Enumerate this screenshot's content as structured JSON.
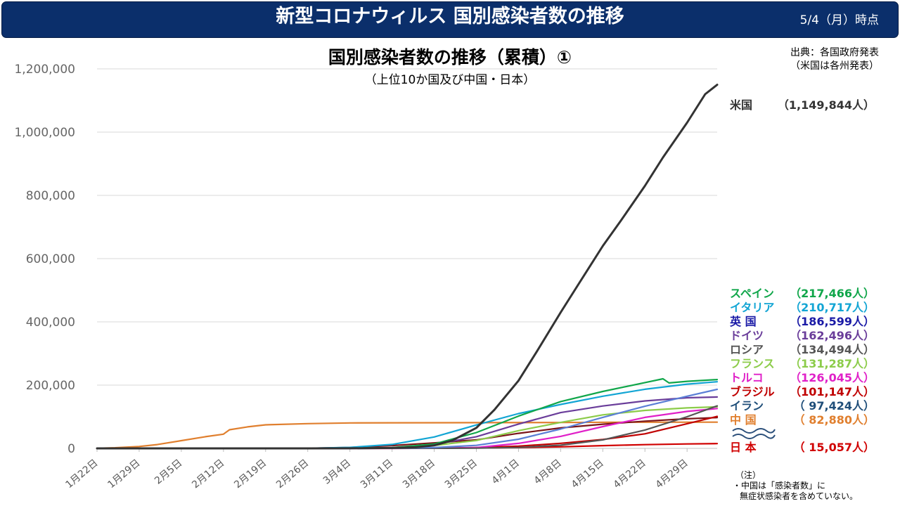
{
  "header": {
    "title": "新型コロナウィルス 国別感染者数の推移",
    "date": "5/4（月）時点"
  },
  "source": {
    "line1": "出典：各国政府発表",
    "line2": "（米国は各州発表）"
  },
  "note": {
    "head": "（注）",
    "line1": "・中国は「感染者数」に",
    "line2": "無症状感染者を含めていない。"
  },
  "chart_data": {
    "type": "line",
    "title": "国別感染者数の推移（累積）①",
    "subtitle": "（上位10か国及び中国・日本）",
    "ylim": [
      0,
      1200000
    ],
    "yticks": [
      "0",
      "200,000",
      "400,000",
      "600,000",
      "800,000",
      "1,000,000",
      "1,200,000"
    ],
    "yticks_values": [
      0,
      200000,
      400000,
      600000,
      800000,
      1000000,
      1200000
    ],
    "x_range": [
      "1月22日",
      "5月4日"
    ],
    "xticks": [
      "1月22日",
      "1月29日",
      "2月5日",
      "2月12日",
      "2月19日",
      "2月26日",
      "3月4日",
      "3月11日",
      "3月18日",
      "3月25日",
      "4月1日",
      "4月8日",
      "4月15日",
      "4月22日",
      "4月29日"
    ],
    "grid": true,
    "legend_placement": "right",
    "series": [
      {
        "name": "米国",
        "value_label": "（1,149,844人）",
        "color": "#333333",
        "points": [
          [
            "1月22日",
            1
          ],
          [
            "2月26日",
            60
          ],
          [
            "3月4日",
            150
          ],
          [
            "3月11日",
            1300
          ],
          [
            "3月15日",
            3500
          ],
          [
            "3月18日",
            9500
          ],
          [
            "3月21日",
            25000
          ],
          [
            "3月25日",
            65000
          ],
          [
            "3月28日",
            122000
          ],
          [
            "4月1日",
            214000
          ],
          [
            "4月4日",
            305000
          ],
          [
            "4月8日",
            430000
          ],
          [
            "4月11日",
            520000
          ],
          [
            "4月15日",
            640000
          ],
          [
            "4月18日",
            720000
          ],
          [
            "4月22日",
            830000
          ],
          [
            "4月25日",
            920000
          ],
          [
            "4月29日",
            1030000
          ],
          [
            "5月2日",
            1120000
          ],
          [
            "5月4日",
            1149844
          ]
        ]
      },
      {
        "name": "スペイン",
        "value_label": "（217,466人）",
        "color": "#10a64a",
        "points": [
          [
            "1月22日",
            0
          ],
          [
            "3月4日",
            200
          ],
          [
            "3月11日",
            2300
          ],
          [
            "3月18日",
            13700
          ],
          [
            "3月25日",
            50000
          ],
          [
            "4月1日",
            102000
          ],
          [
            "4月8日",
            148000
          ],
          [
            "4月15日",
            180000
          ],
          [
            "4月22日",
            208000
          ],
          [
            "4月25日",
            220000
          ],
          [
            "4月26日",
            207000
          ],
          [
            "4月29日",
            212000
          ],
          [
            "5月4日",
            217466
          ]
        ]
      },
      {
        "name": "イタリア",
        "value_label": "（210,717人）",
        "color": "#12a5d4",
        "points": [
          [
            "1月22日",
            0
          ],
          [
            "2月21日",
            20
          ],
          [
            "2月26日",
            450
          ],
          [
            "3月4日",
            3100
          ],
          [
            "3月11日",
            12500
          ],
          [
            "3月18日",
            36000
          ],
          [
            "3月25日",
            74000
          ],
          [
            "4月1日",
            110000
          ],
          [
            "4月8日",
            139000
          ],
          [
            "4月15日",
            165000
          ],
          [
            "4月22日",
            187000
          ],
          [
            "4月29日",
            203000
          ],
          [
            "5月4日",
            210717
          ]
        ]
      },
      {
        "name": "英国",
        "value_label": "（186,599人）",
        "color": "#5b7fd6",
        "points": [
          [
            "1月22日",
            0
          ],
          [
            "3月4日",
            90
          ],
          [
            "3月11日",
            460
          ],
          [
            "3月18日",
            2700
          ],
          [
            "3月25日",
            9500
          ],
          [
            "4月1日",
            29000
          ],
          [
            "4月8日",
            61000
          ],
          [
            "4月15日",
            98000
          ],
          [
            "4月22日",
            133000
          ],
          [
            "4月29日",
            165000
          ],
          [
            "5月4日",
            186599
          ]
        ]
      },
      {
        "name": "ドイツ",
        "value_label": "（162,496人）",
        "color": "#6a3d9a",
        "points": [
          [
            "1月22日",
            0
          ],
          [
            "2月26日",
            20
          ],
          [
            "3月4日",
            260
          ],
          [
            "3月11日",
            1900
          ],
          [
            "3月18日",
            12300
          ],
          [
            "3月25日",
            37000
          ],
          [
            "4月1日",
            77000
          ],
          [
            "4月8日",
            113000
          ],
          [
            "4月15日",
            134000
          ],
          [
            "4月22日",
            150000
          ],
          [
            "4月29日",
            160000
          ],
          [
            "5月4日",
            162496
          ]
        ]
      },
      {
        "name": "ロシア",
        "value_label": "（134,494人）",
        "color": "#555555",
        "points": [
          [
            "1月22日",
            0
          ],
          [
            "3月18日",
            150
          ],
          [
            "3月25日",
            650
          ],
          [
            "4月1日",
            2800
          ],
          [
            "4月8日",
            10000
          ],
          [
            "4月15日",
            27000
          ],
          [
            "4月22日",
            58000
          ],
          [
            "4月29日",
            100000
          ],
          [
            "5月4日",
            134494
          ]
        ]
      },
      {
        "name": "フランス",
        "value_label": "（131,287人）",
        "color": "#8ccc4a",
        "points": [
          [
            "1月22日",
            3
          ],
          [
            "2月26日",
            18
          ],
          [
            "3月4日",
            280
          ],
          [
            "3月11日",
            2300
          ],
          [
            "3月18日",
            9100
          ],
          [
            "3月25日",
            25000
          ],
          [
            "4月1日",
            56000
          ],
          [
            "4月8日",
            82000
          ],
          [
            "4月15日",
            106000
          ],
          [
            "4月22日",
            120000
          ],
          [
            "4月29日",
            128000
          ],
          [
            "5月4日",
            131287
          ]
        ]
      },
      {
        "name": "トルコ",
        "value_label": "（126,045人）",
        "color": "#e020c8",
        "points": [
          [
            "1月22日",
            0
          ],
          [
            "3月11日",
            1
          ],
          [
            "3月18日",
            190
          ],
          [
            "3月25日",
            2400
          ],
          [
            "4月1日",
            15700
          ],
          [
            "4月8日",
            38000
          ],
          [
            "4月15日",
            69000
          ],
          [
            "4月22日",
            98000
          ],
          [
            "4月29日",
            117000
          ],
          [
            "5月4日",
            126045
          ]
        ]
      },
      {
        "name": "ブラジル",
        "value_label": "（101,147人）",
        "color": "#c00000",
        "points": [
          [
            "1月22日",
            0
          ],
          [
            "3月11日",
            50
          ],
          [
            "3月18日",
            430
          ],
          [
            "3月25日",
            2400
          ],
          [
            "4月1日",
            6800
          ],
          [
            "4月8日",
            16000
          ],
          [
            "4月15日",
            28000
          ],
          [
            "4月22日",
            46000
          ],
          [
            "4月29日",
            78000
          ],
          [
            "5月4日",
            101147
          ]
        ]
      },
      {
        "name": "イラン",
        "value_label": "（ 97,424人）",
        "color": "#7a1418",
        "points": [
          [
            "1月22日",
            0
          ],
          [
            "2月19日",
            2
          ],
          [
            "2月26日",
            140
          ],
          [
            "3月4日",
            2900
          ],
          [
            "3月11日",
            9000
          ],
          [
            "3月18日",
            17400
          ],
          [
            "3月25日",
            27000
          ],
          [
            "4月1日",
            47600
          ],
          [
            "4月8日",
            64600
          ],
          [
            "4月15日",
            76400
          ],
          [
            "4月22日",
            85900
          ],
          [
            "4月29日",
            93600
          ],
          [
            "5月4日",
            97424
          ]
        ]
      },
      {
        "name": "中国",
        "value_label": "（ 82,880人）",
        "color": "#e07f2e",
        "points": [
          [
            "1月22日",
            550
          ],
          [
            "1月25日",
            2000
          ],
          [
            "1月29日",
            6000
          ],
          [
            "2月1日",
            12000
          ],
          [
            "2月5日",
            24500
          ],
          [
            "2月9日",
            37000
          ],
          [
            "2月12日",
            45000
          ],
          [
            "2月13日",
            59000
          ],
          [
            "2月16日",
            68000
          ],
          [
            "2月19日",
            74500
          ],
          [
            "2月26日",
            78200
          ],
          [
            "3月4日",
            80400
          ],
          [
            "3月11日",
            80800
          ],
          [
            "3月25日",
            81300
          ],
          [
            "4月8日",
            81800
          ],
          [
            "4月17日",
            82700
          ],
          [
            "5月4日",
            82880
          ]
        ]
      },
      {
        "name": "日本",
        "value_label": "（ 15,057人）",
        "color": "#d00000",
        "points": [
          [
            "1月22日",
            0
          ],
          [
            "2月12日",
            28
          ],
          [
            "2月26日",
            160
          ],
          [
            "3月4日",
            280
          ],
          [
            "3月11日",
            570
          ],
          [
            "3月18日",
            880
          ],
          [
            "3月25日",
            1300
          ],
          [
            "4月1日",
            2400
          ],
          [
            "4月8日",
            4800
          ],
          [
            "4月15日",
            8600
          ],
          [
            "4月22日",
            11800
          ],
          [
            "4月29日",
            14100
          ],
          [
            "5月4日",
            15057
          ]
        ]
      }
    ]
  }
}
